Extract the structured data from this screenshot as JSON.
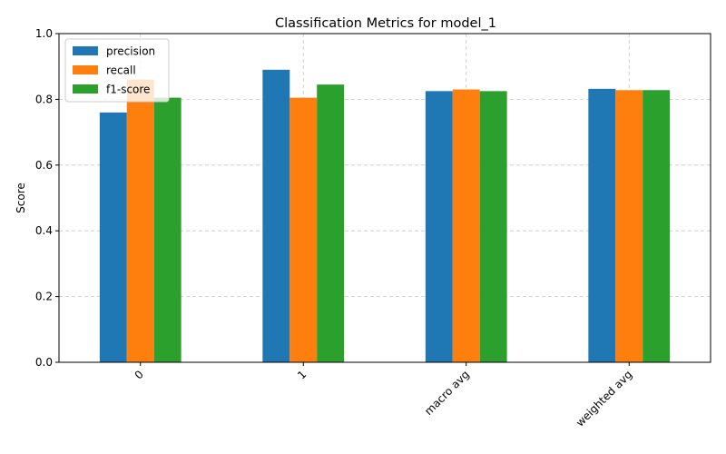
{
  "chart_data": {
    "type": "bar",
    "title": "Classification Metrics for model_1",
    "xlabel": "",
    "ylabel": "Score",
    "categories": [
      "0",
      "1",
      "macro avg",
      "weighted avg"
    ],
    "series": [
      {
        "name": "precision",
        "color": "#1f77b4",
        "values": [
          0.76,
          0.89,
          0.825,
          0.832
        ]
      },
      {
        "name": "recall",
        "color": "#ff7f0e",
        "values": [
          0.86,
          0.805,
          0.83,
          0.828
        ]
      },
      {
        "name": "f1-score",
        "color": "#2ca02c",
        "values": [
          0.805,
          0.845,
          0.825,
          0.828
        ]
      }
    ],
    "ylim": [
      0,
      1.0
    ],
    "yticks": [
      "0.0",
      "0.2",
      "0.4",
      "0.6",
      "0.8",
      "1.0"
    ],
    "ytick_values": [
      0,
      0.2,
      0.4,
      0.6,
      0.8,
      1.0
    ],
    "grid": true,
    "grid_style": "dashed",
    "legend_position": "top-left",
    "xtick_rotation": 45
  }
}
